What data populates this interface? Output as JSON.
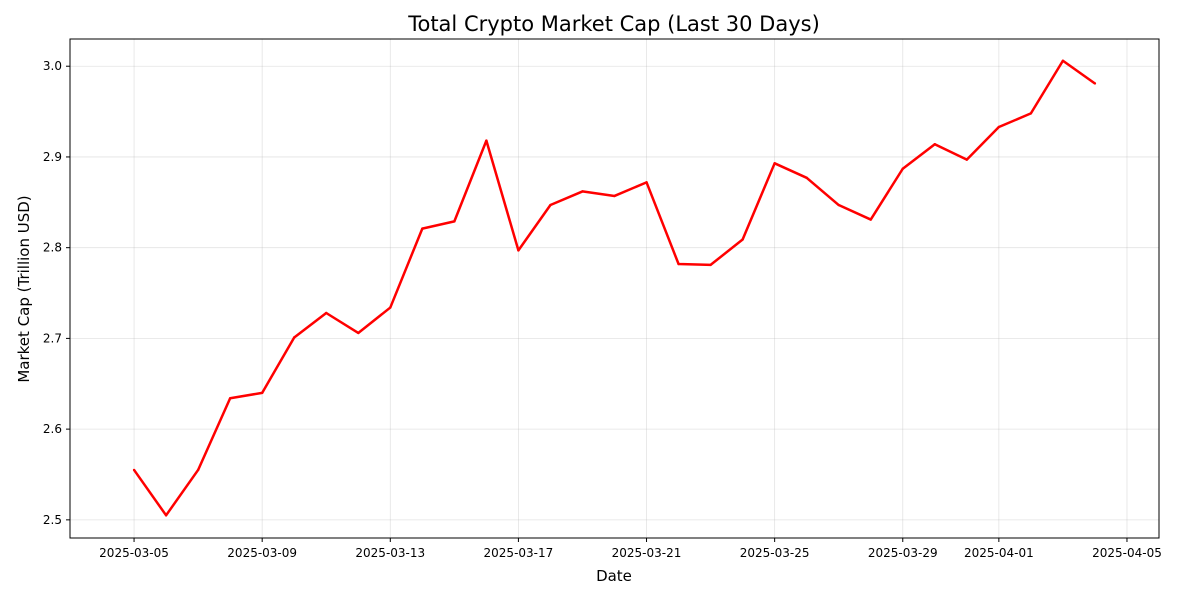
{
  "chart_data": {
    "type": "line",
    "title": "Total Crypto Market Cap (Last 30 Days)",
    "xlabel": "Date",
    "ylabel": "Market Cap (Trillion USD)",
    "x_type": "date",
    "xlim": [
      "2025-03-03",
      "2025-04-06"
    ],
    "ylim": [
      2.48,
      3.03
    ],
    "grid": true,
    "line_color": "#ff0000",
    "x_ticks": [
      "2025-03-05",
      "2025-03-09",
      "2025-03-13",
      "2025-03-17",
      "2025-03-21",
      "2025-03-25",
      "2025-03-29",
      "2025-04-01",
      "2025-04-05"
    ],
    "y_ticks": [
      2.5,
      2.6,
      2.7,
      2.8,
      2.9,
      3.0
    ],
    "y_tick_labels": [
      "2.5",
      "2.6",
      "2.7",
      "2.8",
      "2.9",
      "3.0"
    ],
    "series": [
      {
        "x": [
          "2025-03-05",
          "2025-03-06",
          "2025-03-07",
          "2025-03-08",
          "2025-03-09",
          "2025-03-10",
          "2025-03-11",
          "2025-03-12",
          "2025-03-13",
          "2025-03-14",
          "2025-03-15",
          "2025-03-16",
          "2025-03-17",
          "2025-03-18",
          "2025-03-19",
          "2025-03-20",
          "2025-03-21",
          "2025-03-22",
          "2025-03-23",
          "2025-03-24",
          "2025-03-25",
          "2025-03-26",
          "2025-03-27",
          "2025-03-28",
          "2025-03-29",
          "2025-03-30",
          "2025-03-31",
          "2025-04-01",
          "2025-04-02",
          "2025-04-03",
          "2025-04-04"
        ],
        "values": [
          2.555,
          2.505,
          2.555,
          2.634,
          2.64,
          2.701,
          2.728,
          2.706,
          2.734,
          2.821,
          2.829,
          2.918,
          2.797,
          2.847,
          2.862,
          2.857,
          2.872,
          2.782,
          2.781,
          2.809,
          2.893,
          2.877,
          2.847,
          2.831,
          2.887,
          2.914,
          2.897,
          2.933,
          2.948,
          3.006,
          2.981
        ]
      }
    ]
  }
}
